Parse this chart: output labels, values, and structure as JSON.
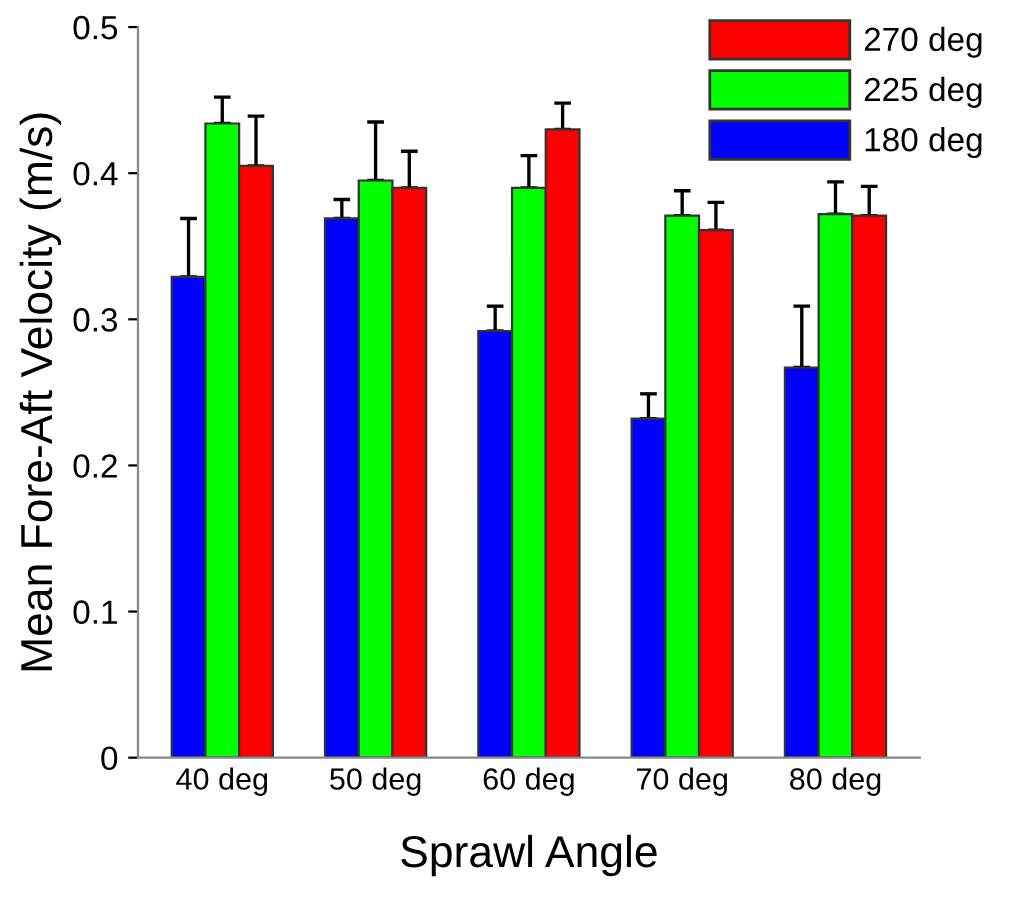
{
  "chart_data": {
    "type": "bar",
    "xlabel": "Sprawl Angle",
    "ylabel": "Mean Fore-Aft Velocity (m/s)",
    "categories": [
      "40 deg",
      "50 deg",
      "60 deg",
      "70 deg",
      "80 deg"
    ],
    "series": [
      {
        "name": "180 deg",
        "color": "#0000ff",
        "values": [
          0.329,
          0.369,
          0.292,
          0.232,
          0.267
        ],
        "errors": [
          [
            0.329,
            0.369
          ],
          [
            0.369,
            0.382
          ],
          [
            0.292,
            0.309
          ],
          [
            0.232,
            0.249
          ],
          [
            0.267,
            0.309
          ]
        ]
      },
      {
        "name": "225 deg",
        "color": "#00ff00",
        "values": [
          0.434,
          0.395,
          0.39,
          0.371,
          0.372
        ],
        "errors": [
          [
            0.434,
            0.452
          ],
          [
            0.395,
            0.435
          ],
          [
            0.39,
            0.412
          ],
          [
            0.371,
            0.388
          ],
          [
            0.372,
            0.394
          ]
        ]
      },
      {
        "name": "270 deg",
        "color": "#ff0000",
        "values": [
          0.405,
          0.39,
          0.43,
          0.361,
          0.371
        ],
        "errors": [
          [
            0.405,
            0.439
          ],
          [
            0.39,
            0.415
          ],
          [
            0.43,
            0.448
          ],
          [
            0.361,
            0.38
          ],
          [
            0.371,
            0.391
          ]
        ]
      }
    ],
    "ylim": [
      0,
      0.5
    ],
    "yticks": [
      {
        "value": 0,
        "label": "0"
      },
      0.1,
      0.2,
      0.3,
      0.4,
      0.5
    ],
    "grid": false,
    "legend": "top right"
  }
}
